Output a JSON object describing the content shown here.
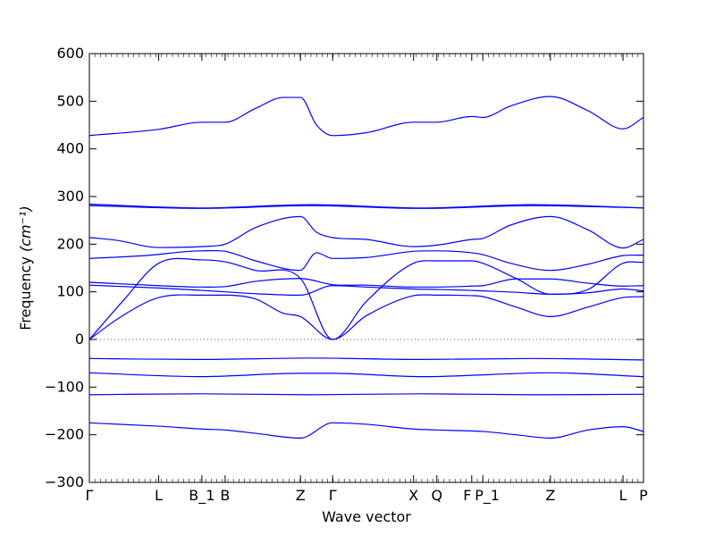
{
  "chart_data": {
    "type": "line",
    "title": "",
    "xlabel": "Wave vector",
    "ylabel": "Frequency ",
    "ylabel_unit": "(cm⁻¹)",
    "ylim": [
      -300,
      600
    ],
    "yticks": [
      600,
      500,
      400,
      300,
      200,
      100,
      0,
      -100,
      -200,
      -300
    ],
    "xlim": [
      0,
      1
    ],
    "x_ticks": [
      {
        "label": "Γ",
        "x": 0.0
      },
      {
        "label": "L",
        "x": 0.125
      },
      {
        "label": "B_1",
        "x": 0.203
      },
      {
        "label": "B",
        "x": 0.245
      },
      {
        "label": "Z",
        "x": 0.381
      },
      {
        "label": "Γ",
        "x": 0.439
      },
      {
        "label": "X",
        "x": 0.585
      },
      {
        "label": "Q",
        "x": 0.627
      },
      {
        "label": "F",
        "x": 0.69
      },
      {
        "label": "P_1",
        "x": 0.71
      },
      {
        "label": "Z",
        "x": 0.832
      },
      {
        "label": "L",
        "x": 0.963
      },
      {
        "label": "P",
        "x": 1.0
      }
    ],
    "zero_line": true,
    "grid": false,
    "line_color": "#0000ff",
    "series": [
      {
        "x": [
          0,
          0.125,
          0.203,
          0.245,
          0.3,
          0.35,
          0.381,
          0.41,
          0.439,
          0.5,
          0.585,
          0.627,
          0.69,
          0.71,
          0.76,
          0.832,
          0.9,
          0.963,
          1.0
        ],
        "values": [
          428,
          441,
          456,
          456,
          485,
          508,
          508,
          450,
          428,
          434,
          456,
          456,
          468,
          466,
          490,
          510,
          480,
          442,
          466
        ]
      },
      {
        "x": [
          0,
          0.2,
          0.4,
          0.6,
          0.8,
          1.0
        ],
        "values": [
          284,
          276,
          283,
          276,
          283,
          276
        ]
      },
      {
        "x": [
          0,
          0.2,
          0.4,
          0.6,
          0.8,
          1.0
        ],
        "values": [
          281,
          275,
          281,
          275,
          281,
          276
        ]
      },
      {
        "x": [
          0,
          0.05,
          0.125,
          0.203,
          0.245,
          0.3,
          0.381,
          0.41,
          0.439,
          0.5,
          0.585,
          0.627,
          0.69,
          0.71,
          0.76,
          0.832,
          0.9,
          0.963,
          1.0
        ],
        "values": [
          214,
          208,
          193,
          195,
          200,
          235,
          258,
          225,
          214,
          210,
          195,
          198,
          210,
          212,
          240,
          258,
          230,
          192,
          210
        ]
      },
      {
        "x": [
          0,
          0.1,
          0.203,
          0.245,
          0.3,
          0.38,
          0.41,
          0.439,
          0.5,
          0.585,
          0.627,
          0.69,
          0.71,
          0.76,
          0.832,
          0.9,
          0.963,
          1.0
        ],
        "values": [
          170,
          176,
          186,
          185,
          165,
          145,
          182,
          170,
          172,
          185,
          186,
          182,
          178,
          160,
          145,
          158,
          176,
          177
        ]
      },
      {
        "x": [
          0,
          0.06,
          0.125,
          0.203,
          0.245,
          0.3,
          0.381,
          0.439,
          0.5,
          0.585,
          0.627,
          0.69,
          0.71,
          0.77,
          0.832,
          0.9,
          0.963,
          1.0
        ],
        "values": [
          0,
          80,
          160,
          167,
          163,
          145,
          128,
          0,
          80,
          160,
          165,
          165,
          160,
          128,
          95,
          105,
          160,
          162
        ]
      },
      {
        "x": [
          0,
          0.125,
          0.203,
          0.245,
          0.3,
          0.381,
          0.439,
          0.5,
          0.585,
          0.627,
          0.69,
          0.71,
          0.77,
          0.832,
          0.9,
          0.963,
          1.0
        ],
        "values": [
          120,
          113,
          110,
          111,
          122,
          128,
          115,
          114,
          110,
          110,
          112,
          113,
          127,
          127,
          118,
          112,
          113
        ]
      },
      {
        "x": [
          0,
          0.125,
          0.203,
          0.245,
          0.3,
          0.381,
          0.439,
          0.5,
          0.585,
          0.627,
          0.69,
          0.71,
          0.77,
          0.832,
          0.9,
          0.963,
          1.0
        ],
        "values": [
          114,
          108,
          103,
          100,
          96,
          93,
          113,
          110,
          106,
          105,
          103,
          102,
          99,
          95,
          98,
          106,
          102
        ]
      },
      {
        "x": [
          0,
          0.06,
          0.125,
          0.203,
          0.245,
          0.3,
          0.35,
          0.381,
          0.439,
          0.5,
          0.585,
          0.627,
          0.69,
          0.71,
          0.77,
          0.832,
          0.9,
          0.963,
          1.0
        ],
        "values": [
          0,
          50,
          88,
          93,
          93,
          85,
          55,
          48,
          0,
          50,
          92,
          93,
          92,
          90,
          68,
          48,
          68,
          88,
          90
        ]
      },
      {
        "x": [
          0,
          0.2,
          0.4,
          0.6,
          0.8,
          1.0
        ],
        "values": [
          -40,
          -42,
          -39,
          -42,
          -40,
          -43
        ]
      },
      {
        "x": [
          0,
          0.2,
          0.381,
          0.439,
          0.6,
          0.832,
          1.0
        ],
        "values": [
          -70,
          -78,
          -71,
          -71,
          -78,
          -70,
          -78
        ]
      },
      {
        "x": [
          0,
          0.2,
          0.4,
          0.6,
          0.8,
          1.0
        ],
        "values": [
          -116,
          -114,
          -116,
          -114,
          -116,
          -115
        ]
      },
      {
        "x": [
          0,
          0.125,
          0.203,
          0.245,
          0.3,
          0.381,
          0.439,
          0.5,
          0.585,
          0.627,
          0.69,
          0.71,
          0.77,
          0.832,
          0.9,
          0.963,
          1.0
        ],
        "values": [
          -175,
          -182,
          -188,
          -190,
          -197,
          -207,
          -175,
          -178,
          -188,
          -190,
          -192,
          -193,
          -200,
          -207,
          -190,
          -183,
          -193
        ]
      }
    ]
  }
}
